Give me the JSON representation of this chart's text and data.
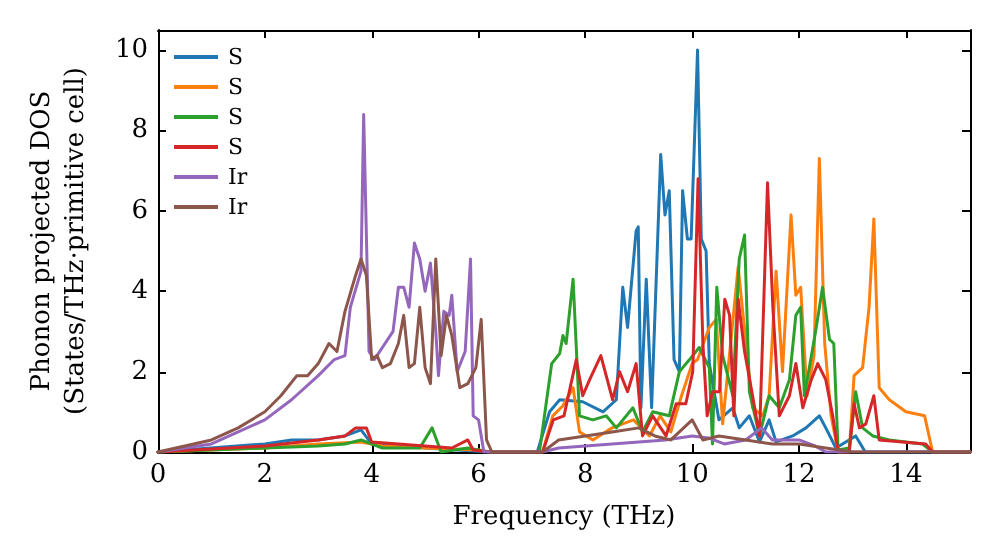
{
  "chart_data": {
    "type": "line",
    "xlabel": "Frequency (THz)",
    "ylabel": "Phonon projected DOS\n(States/THz·primitive cell)",
    "xlim": [
      0,
      15.2
    ],
    "xticks": [
      0,
      2,
      4,
      6,
      8,
      10,
      12,
      14
    ],
    "ylim": [
      0,
      10.5
    ],
    "yticks": [
      0,
      2,
      4,
      6,
      8,
      10
    ],
    "grid": false,
    "legend": "top left",
    "marker": "none",
    "line_style": "solid",
    "series": [
      {
        "name": "S",
        "color": "#1f77b4",
        "x": [
          0,
          2,
          2.5,
          3,
          3.5,
          3.8,
          4,
          5,
          6.2,
          7.1,
          7.33,
          7.52,
          7.95,
          8.33,
          8.58,
          8.7,
          8.79,
          8.95,
          8.99,
          9.04,
          9.14,
          9.24,
          9.41,
          9.49,
          9.57,
          9.66,
          9.76,
          9.82,
          9.91,
          9.98,
          10.1,
          10.17,
          10.26,
          10.32,
          10.5,
          10.76,
          10.88,
          11.07,
          11.26,
          11.44,
          11.57,
          11.88,
          12.13,
          12.38,
          12.5,
          12.69,
          13.06,
          13.24,
          13.5,
          15.2
        ],
        "values": [
          0,
          0.2,
          0.3,
          0.3,
          0.4,
          0.55,
          0.2,
          0.1,
          0,
          0,
          1.0,
          1.3,
          1.25,
          1.0,
          1.3,
          4.1,
          3.1,
          5.5,
          5.6,
          1.1,
          4.3,
          1.1,
          7.4,
          5.9,
          6.5,
          2.3,
          2.0,
          6.5,
          5.3,
          5.3,
          10.0,
          5.3,
          5.0,
          2.2,
          0.8,
          1.1,
          0.6,
          0.9,
          0.25,
          0.8,
          0.25,
          0.4,
          0.6,
          0.9,
          0.6,
          0.1,
          0.4,
          0,
          0,
          0
        ]
      },
      {
        "name": "S",
        "color": "#ff7f0e",
        "x": [
          0,
          2,
          3,
          3.8,
          4.2,
          5,
          6,
          6.2,
          7.2,
          7.39,
          7.58,
          7.77,
          7.89,
          8.14,
          8.5,
          8.9,
          9.2,
          9.4,
          9.6,
          9.8,
          10.0,
          10.1,
          10.32,
          10.45,
          10.57,
          10.86,
          11.13,
          11.32,
          11.44,
          11.57,
          11.69,
          11.85,
          11.94,
          12.03,
          12.15,
          12.28,
          12.38,
          12.48,
          12.6,
          12.73,
          12.94,
          13.03,
          13.19,
          13.31,
          13.4,
          13.5,
          13.69,
          14.0,
          14.35,
          14.5,
          15.2
        ],
        "values": [
          0,
          0.1,
          0.2,
          0.25,
          0.15,
          0.1,
          0.05,
          0,
          0,
          0.9,
          1.15,
          1.6,
          0.5,
          0.3,
          0.6,
          0.8,
          0.4,
          0.9,
          0.5,
          1.4,
          2.2,
          2.3,
          3.1,
          3.3,
          0.7,
          4.6,
          1.1,
          0.9,
          1.4,
          4.5,
          2.0,
          5.9,
          3.9,
          4.1,
          1.4,
          2.4,
          7.3,
          2.7,
          0.9,
          0,
          0,
          1.9,
          2.1,
          3.6,
          5.8,
          1.6,
          1.3,
          1.0,
          0.9,
          0,
          0
        ]
      },
      {
        "name": "S",
        "color": "#2ca02c",
        "x": [
          0,
          2,
          3,
          3.5,
          3.8,
          4.2,
          4.9,
          5.13,
          5.3,
          5.8,
          6.2,
          7.14,
          7.37,
          7.52,
          7.58,
          7.64,
          7.77,
          7.89,
          8.14,
          8.39,
          8.58,
          8.89,
          9.07,
          9.26,
          9.57,
          9.76,
          9.95,
          10.13,
          10.32,
          10.38,
          10.46,
          10.57,
          10.76,
          10.88,
          10.98,
          11.07,
          11.26,
          11.44,
          11.63,
          11.82,
          11.94,
          12.03,
          12.1,
          12.31,
          12.44,
          12.57,
          12.65,
          12.73,
          12.94,
          13.06,
          13.19,
          13.38,
          13.69,
          14.31,
          14.5,
          15.2
        ],
        "values": [
          0,
          0.1,
          0.15,
          0.2,
          0.3,
          0.1,
          0.1,
          0.6,
          0,
          0.1,
          0,
          0,
          2.2,
          2.45,
          2.9,
          2.7,
          4.3,
          0.9,
          0.8,
          0.9,
          0.6,
          1.1,
          0.5,
          1.0,
          0.9,
          2.0,
          2.3,
          2.6,
          2.1,
          0.2,
          4.1,
          2.4,
          1.4,
          4.8,
          5.4,
          1.5,
          0.4,
          1.4,
          1.1,
          1.8,
          3.4,
          3.6,
          1.4,
          3.0,
          4.1,
          2.8,
          2.7,
          0.05,
          0.1,
          1.5,
          0.6,
          0.4,
          0.3,
          0.2,
          0,
          0
        ]
      },
      {
        "name": "S",
        "color": "#d62728",
        "x": [
          0,
          2,
          3,
          3.5,
          3.7,
          3.9,
          4.0,
          4.5,
          5,
          5.5,
          5.8,
          5.9,
          6.2,
          7.2,
          7.4,
          7.6,
          7.83,
          7.95,
          8.08,
          8.29,
          8.51,
          8.64,
          8.79,
          8.95,
          9.07,
          9.26,
          9.51,
          9.7,
          9.88,
          10.01,
          10.11,
          10.2,
          10.28,
          10.38,
          10.51,
          10.61,
          10.7,
          10.78,
          10.86,
          10.98,
          11.13,
          11.26,
          11.41,
          11.51,
          11.63,
          11.82,
          11.94,
          12.07,
          12.23,
          12.35,
          12.5,
          12.63,
          12.73,
          12.94,
          13.03,
          13.13,
          13.25,
          13.4,
          13.5,
          14.37,
          14.5,
          15.2
        ],
        "values": [
          0,
          0.15,
          0.3,
          0.4,
          0.6,
          0.6,
          0.25,
          0.2,
          0.15,
          0.1,
          0.3,
          0.05,
          0,
          0,
          0.8,
          0.9,
          2.3,
          1.4,
          1.8,
          2.4,
          1.3,
          2.0,
          1.5,
          2.2,
          0.4,
          0.9,
          0.4,
          1.2,
          1.2,
          2.0,
          6.8,
          2.7,
          0.9,
          1.5,
          1.5,
          3.8,
          3.4,
          0.9,
          3.8,
          2.5,
          1.4,
          0.4,
          6.7,
          3.6,
          0.9,
          1.4,
          2.2,
          1.1,
          1.8,
          2.2,
          1.8,
          0.9,
          0,
          0,
          1.2,
          0.6,
          0.7,
          1.4,
          0.3,
          0.2,
          0,
          0
        ]
      },
      {
        "name": "Ir",
        "color": "#9467bd",
        "x": [
          0,
          1,
          2,
          2.5,
          3,
          3.3,
          3.5,
          3.6,
          3.8,
          3.85,
          3.95,
          4.05,
          4.2,
          4.4,
          4.5,
          4.6,
          4.7,
          4.8,
          4.9,
          5.0,
          5.1,
          5.2,
          5.25,
          5.35,
          5.45,
          5.5,
          5.6,
          5.75,
          5.85,
          5.9,
          6.0,
          6.1,
          7.2,
          7.5,
          8,
          9,
          9.5,
          10,
          10.3,
          10.6,
          11,
          11.3,
          11.5,
          12,
          12.3,
          12.5,
          15.2
        ],
        "values": [
          0,
          0.2,
          0.8,
          1.3,
          1.9,
          2.3,
          2.4,
          3.6,
          4.5,
          8.4,
          2.5,
          2.3,
          2.6,
          3.0,
          4.1,
          4.1,
          3.6,
          5.2,
          4.8,
          4.0,
          4.7,
          3.0,
          1.9,
          3.5,
          3.4,
          3.9,
          2.0,
          2.5,
          4.8,
          0.9,
          0.8,
          0,
          0,
          0.1,
          0.15,
          0.25,
          0.3,
          0.4,
          0.35,
          0.2,
          0.3,
          0.6,
          0.3,
          0.3,
          0.15,
          0,
          0
        ]
      },
      {
        "name": "Ir",
        "color": "#8c564b",
        "x": [
          0,
          1,
          1.5,
          2,
          2.3,
          2.6,
          2.8,
          3.0,
          3.2,
          3.35,
          3.5,
          3.7,
          3.8,
          3.9,
          4.0,
          4.1,
          4.2,
          4.35,
          4.5,
          4.6,
          4.7,
          4.8,
          4.9,
          5.0,
          5.1,
          5.2,
          5.3,
          5.4,
          5.5,
          5.65,
          5.8,
          5.95,
          6.05,
          6.15,
          6.25,
          7.2,
          7.5,
          8,
          8.5,
          9,
          9.3,
          9.6,
          10,
          10.2,
          10.5,
          11,
          11.5,
          12,
          12.5,
          13,
          15.2
        ],
        "values": [
          0,
          0.3,
          0.6,
          1.0,
          1.4,
          1.9,
          1.9,
          2.2,
          2.7,
          2.5,
          3.5,
          4.4,
          4.8,
          4.4,
          2.3,
          2.4,
          2.1,
          2.2,
          2.7,
          3.4,
          2.1,
          2.2,
          3.6,
          2.1,
          1.7,
          4.8,
          2.4,
          3.4,
          2.9,
          1.6,
          1.7,
          2.1,
          3.3,
          0.3,
          0,
          0,
          0.3,
          0.4,
          0.5,
          0.6,
          0.4,
          0.3,
          0.8,
          0.3,
          0.4,
          0.3,
          0.2,
          0.2,
          0.1,
          0,
          0
        ]
      }
    ]
  }
}
